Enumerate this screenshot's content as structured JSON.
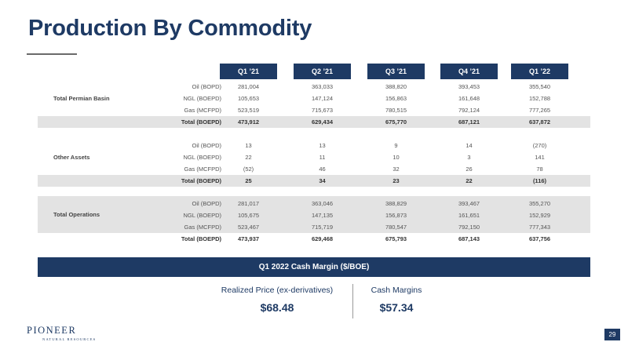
{
  "title": "Production By Commodity",
  "columns": [
    "Q1 ’21",
    "Q2 ’21",
    "Q3 ’21",
    "Q4 ’21",
    "Q1 ’22"
  ],
  "groups": [
    {
      "label": "Total Permian Basin",
      "rows": [
        {
          "metric": "Oil (BOPD)",
          "values": [
            "281,004",
            "363,033",
            "388,820",
            "393,453",
            "355,540"
          ]
        },
        {
          "metric": "NGL (BOEPD)",
          "values": [
            "105,653",
            "147,124",
            "156,863",
            "161,648",
            "152,788"
          ]
        },
        {
          "metric": "Gas (MCFPD)",
          "values": [
            "523,519",
            "715,673",
            "780,515",
            "792,124",
            "777,265"
          ]
        },
        {
          "metric": "Total (BOEPD)",
          "values": [
            "473,912",
            "629,434",
            "675,770",
            "687,121",
            "637,872"
          ]
        }
      ]
    },
    {
      "label": "Other Assets",
      "rows": [
        {
          "metric": "Oil (BOPD)",
          "values": [
            "13",
            "13",
            "9",
            "14",
            "(270)"
          ]
        },
        {
          "metric": "NGL (BOEPD)",
          "values": [
            "22",
            "11",
            "10",
            "3",
            "141"
          ]
        },
        {
          "metric": "Gas (MCFPD)",
          "values": [
            "(52)",
            "46",
            "32",
            "26",
            "78"
          ]
        },
        {
          "metric": "Total (BOEPD)",
          "values": [
            "25",
            "34",
            "23",
            "22",
            "(116)"
          ]
        }
      ]
    },
    {
      "label": "Total Operations",
      "rows": [
        {
          "metric": "Oil (BOPD)",
          "values": [
            "281,017",
            "363,046",
            "388,829",
            "393,467",
            "355,270"
          ]
        },
        {
          "metric": "NGL (BOEPD)",
          "values": [
            "105,675",
            "147,135",
            "156,873",
            "161,651",
            "152,929"
          ]
        },
        {
          "metric": "Gas (MCFPD)",
          "values": [
            "523,467",
            "715,719",
            "780,547",
            "792,150",
            "777,343"
          ]
        },
        {
          "metric": "Total (BOEPD)",
          "values": [
            "473,937",
            "629,468",
            "675,793",
            "687,143",
            "637,756"
          ]
        }
      ]
    }
  ],
  "cash_margin": {
    "header": "Q1 2022 Cash Margin ($/BOE)",
    "realized_label": "Realized Price (ex-derivatives)",
    "realized_value": "$68.48",
    "margin_label": "Cash Margins",
    "margin_value": "$57.34"
  },
  "logo": {
    "name": "PIONEER",
    "sub": "NATURAL RESOURCES"
  },
  "page_number": "29",
  "colors": {
    "navy": "#1e3a64",
    "shade": "#e3e3e3"
  }
}
